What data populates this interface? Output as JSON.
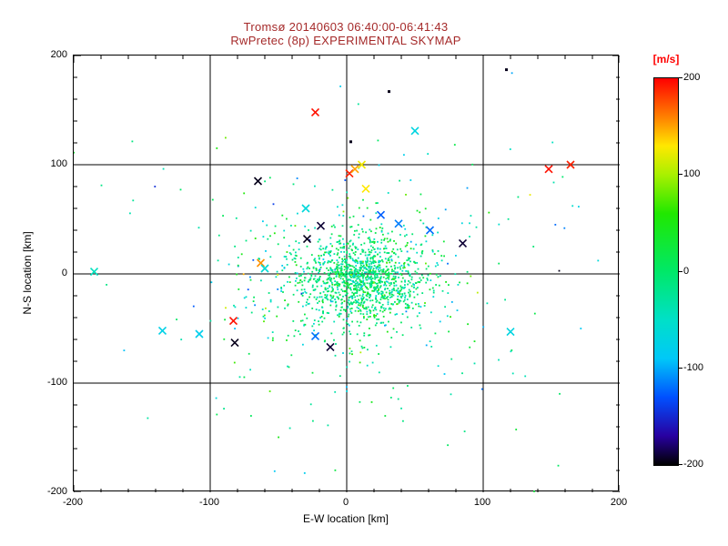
{
  "chart_data": {
    "type": "scatter",
    "title_line1": "Tromsø 20140603 06:40:00-06:41:43",
    "title_line2": "RwPretec (8p) EXPERIMENTAL SKYMAP",
    "title_color": "#a52a2a",
    "xlabel": "E-W location [km]",
    "ylabel": "N-S location [km]",
    "xlim": [
      -200,
      200
    ],
    "ylim": [
      -200,
      200
    ],
    "x_ticks": [
      -200,
      -100,
      0,
      100,
      200
    ],
    "y_ticks": [
      200,
      100,
      0,
      -100,
      -200
    ],
    "minor_tick_step": 20,
    "gridlines": [
      -100,
      0,
      100
    ],
    "grid": true,
    "point_color_meaning": "Doppler velocity [m/s] mapped through rainbow colorbar",
    "colorbar": {
      "label": "[m/s]",
      "label_color": "#ff0000",
      "vmin": -200,
      "vmax": 200,
      "ticks": [
        200,
        100,
        0,
        -100,
        -200
      ],
      "stops": [
        [
          200,
          "#ff0000"
        ],
        [
          160,
          "#ff8000"
        ],
        [
          130,
          "#ffe800"
        ],
        [
          100,
          "#a8f000"
        ],
        [
          60,
          "#20e800"
        ],
        [
          0,
          "#00e868"
        ],
        [
          -50,
          "#00e0c8"
        ],
        [
          -90,
          "#00c8f8"
        ],
        [
          -130,
          "#0050ff"
        ],
        [
          -170,
          "#2800a0"
        ],
        [
          -200,
          "#000000"
        ]
      ]
    },
    "seed": 20140603,
    "cluster_components": [
      {
        "count": 1100,
        "cx": 10,
        "cy": -5,
        "sx": 22,
        "sy": 19,
        "v_mean": -5,
        "v_sigma": 30
      },
      {
        "count": 420,
        "cx": 8,
        "cy": -8,
        "sx": 48,
        "sy": 42,
        "v_mean": -15,
        "v_sigma": 45
      },
      {
        "count": 150,
        "cx": 0,
        "cy": -10,
        "sx": 100,
        "sy": 90,
        "v_mean": -20,
        "v_sigma": 60
      }
    ],
    "markers": [
      {
        "x": -185,
        "y": 2,
        "v": -45,
        "s": "x"
      },
      {
        "x": -135,
        "y": -52,
        "v": -75,
        "s": "x"
      },
      {
        "x": -108,
        "y": -55,
        "v": -80,
        "s": "x"
      },
      {
        "x": -82,
        "y": -63,
        "v": -195,
        "s": "x"
      },
      {
        "x": -83,
        "y": -43,
        "v": 195,
        "s": "x"
      },
      {
        "x": -65,
        "y": 85,
        "v": -195,
        "s": "x"
      },
      {
        "x": -63,
        "y": 10,
        "v": 155,
        "s": "x"
      },
      {
        "x": -60,
        "y": 5,
        "v": -60,
        "s": "x"
      },
      {
        "x": -30,
        "y": 60,
        "v": -65,
        "s": "x"
      },
      {
        "x": -29,
        "y": 32,
        "v": -195,
        "s": "x"
      },
      {
        "x": -23,
        "y": 148,
        "v": 195,
        "s": "x"
      },
      {
        "x": -19,
        "y": 44,
        "v": -190,
        "s": "x"
      },
      {
        "x": -23,
        "y": -57,
        "v": -120,
        "s": "x"
      },
      {
        "x": -12,
        "y": -67,
        "v": -190,
        "s": "x"
      },
      {
        "x": 2,
        "y": 92,
        "v": 190,
        "s": "x"
      },
      {
        "x": 6,
        "y": 96,
        "v": 150,
        "s": "x"
      },
      {
        "x": 11,
        "y": 100,
        "v": 125,
        "s": "x"
      },
      {
        "x": 14,
        "y": 78,
        "v": 130,
        "s": "x"
      },
      {
        "x": 3,
        "y": 121,
        "v": -195,
        "s": "dot"
      },
      {
        "x": 31,
        "y": 167,
        "v": -195,
        "s": "dot"
      },
      {
        "x": 25,
        "y": 54,
        "v": -125,
        "s": "x"
      },
      {
        "x": 38,
        "y": 46,
        "v": -115,
        "s": "x"
      },
      {
        "x": 50,
        "y": 131,
        "v": -70,
        "s": "x"
      },
      {
        "x": 61,
        "y": 40,
        "v": -120,
        "s": "x"
      },
      {
        "x": 85,
        "y": 28,
        "v": -190,
        "s": "x"
      },
      {
        "x": 117,
        "y": 187,
        "v": -195,
        "s": "dot"
      },
      {
        "x": 120,
        "y": -53,
        "v": -70,
        "s": "x"
      },
      {
        "x": 148,
        "y": 96,
        "v": 195,
        "s": "x"
      },
      {
        "x": 164,
        "y": 100,
        "v": 190,
        "s": "x"
      }
    ]
  }
}
